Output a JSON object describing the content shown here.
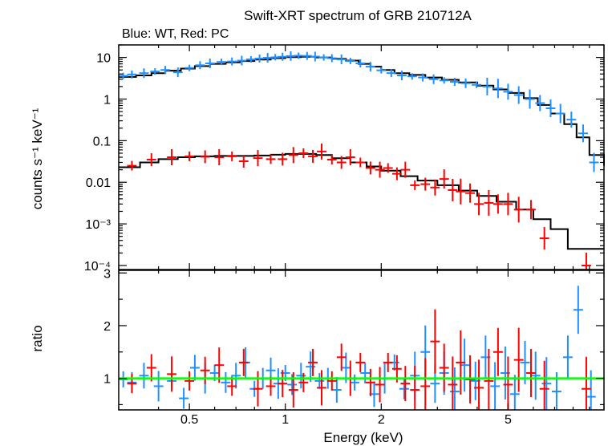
{
  "title": "Swift-XRT spectrum of GRB 210712A",
  "subtitle": "Blue: WT, Red: PC",
  "colors": {
    "wt": "#1e90ff",
    "pc": "#ff0000",
    "model": "#000000",
    "unity": "#00ff00",
    "frame": "#000000"
  },
  "chart_data": [
    {
      "type": "scatter",
      "panel": "spectrum",
      "title": "Swift-XRT spectrum of GRB 210712A",
      "xlabel": "Energy (keV)",
      "ylabel": "counts s⁻¹ keV⁻¹",
      "xscale": "log",
      "yscale": "log",
      "xlim": [
        0.3,
        10
      ],
      "ylim": [
        8e-05,
        20
      ],
      "xticks": [
        0.5,
        1,
        2,
        5
      ],
      "yticks": [
        "10",
        "1",
        "0.1",
        "0.01",
        "10⁻³",
        "10⁻⁴"
      ],
      "ytick_values": [
        10,
        1,
        0.1,
        0.01,
        0.001,
        0.0001
      ],
      "series": [
        {
          "name": "WT",
          "color": "#1e90ff",
          "points": [
            [
              0.31,
              3.6
            ],
            [
              0.33,
              3.9
            ],
            [
              0.36,
              4.2
            ],
            [
              0.39,
              4.6
            ],
            [
              0.42,
              5.0
            ],
            [
              0.46,
              4.4
            ],
            [
              0.5,
              5.6
            ],
            [
              0.54,
              6.5
            ],
            [
              0.58,
              7.2
            ],
            [
              0.63,
              7.8
            ],
            [
              0.68,
              8.0
            ],
            [
              0.73,
              8.4
            ],
            [
              0.78,
              9.0
            ],
            [
              0.83,
              9.4
            ],
            [
              0.88,
              9.8
            ],
            [
              0.93,
              10.1
            ],
            [
              0.98,
              10.4
            ],
            [
              1.04,
              10.8
            ],
            [
              1.1,
              11.0
            ],
            [
              1.17,
              10.9
            ],
            [
              1.24,
              10.5
            ],
            [
              1.32,
              10.0
            ],
            [
              1.4,
              9.6
            ],
            [
              1.5,
              9.0
            ],
            [
              1.6,
              8.2
            ],
            [
              1.72,
              7.2
            ],
            [
              1.85,
              6.0
            ],
            [
              2.0,
              4.9
            ],
            [
              2.15,
              4.2
            ],
            [
              2.32,
              3.7
            ],
            [
              2.5,
              3.5
            ],
            [
              2.7,
              3.3
            ],
            [
              2.92,
              3.0
            ],
            [
              3.15,
              2.8
            ],
            [
              3.4,
              2.6
            ],
            [
              3.68,
              2.4
            ],
            [
              3.98,
              2.2
            ],
            [
              4.3,
              2.0
            ],
            [
              4.65,
              1.8
            ],
            [
              5.0,
              1.5
            ],
            [
              5.4,
              1.25
            ],
            [
              5.85,
              1.0
            ],
            [
              6.3,
              0.8
            ],
            [
              6.8,
              0.6
            ],
            [
              7.3,
              0.45
            ],
            [
              7.9,
              0.32
            ],
            [
              8.6,
              0.15
            ],
            [
              9.3,
              0.03
            ]
          ]
        },
        {
          "name": "PC",
          "color": "#ff0000",
          "points": [
            [
              0.33,
              0.025
            ],
            [
              0.38,
              0.035
            ],
            [
              0.44,
              0.04
            ],
            [
              0.5,
              0.042
            ],
            [
              0.56,
              0.041
            ],
            [
              0.62,
              0.04
            ],
            [
              0.68,
              0.042
            ],
            [
              0.74,
              0.032
            ],
            [
              0.82,
              0.038
            ],
            [
              0.9,
              0.036
            ],
            [
              0.98,
              0.036
            ],
            [
              1.06,
              0.045
            ],
            [
              1.14,
              0.05
            ],
            [
              1.22,
              0.042
            ],
            [
              1.3,
              0.055
            ],
            [
              1.4,
              0.035
            ],
            [
              1.5,
              0.03
            ],
            [
              1.6,
              0.04
            ],
            [
              1.72,
              0.03
            ],
            [
              1.85,
              0.022
            ],
            [
              1.98,
              0.02
            ],
            [
              2.1,
              0.022
            ],
            [
              2.24,
              0.016
            ],
            [
              2.38,
              0.02
            ],
            [
              2.55,
              0.0085
            ],
            [
              2.75,
              0.009
            ],
            [
              2.95,
              0.0075
            ],
            [
              3.15,
              0.012
            ],
            [
              3.35,
              0.0065
            ],
            [
              3.55,
              0.006
            ],
            [
              3.8,
              0.0055
            ],
            [
              4.05,
              0.003
            ],
            [
              4.35,
              0.0032
            ],
            [
              4.65,
              0.003
            ],
            [
              5.0,
              0.003
            ],
            [
              5.4,
              0.0022
            ],
            [
              5.9,
              0.0022
            ],
            [
              6.5,
              0.00045
            ],
            [
              8.8,
              0.0001
            ]
          ]
        }
      ],
      "model": {
        "color": "#000000",
        "wt": [
          [
            0.3,
            3.4
          ],
          [
            0.34,
            3.7
          ],
          [
            0.38,
            4.2
          ],
          [
            0.42,
            4.8
          ],
          [
            0.47,
            5.4
          ],
          [
            0.52,
            6.2
          ],
          [
            0.58,
            7.0
          ],
          [
            0.65,
            7.6
          ],
          [
            0.72,
            8.2
          ],
          [
            0.8,
            8.9
          ],
          [
            0.9,
            9.6
          ],
          [
            1.0,
            10.2
          ],
          [
            1.12,
            10.4
          ],
          [
            1.25,
            10.0
          ],
          [
            1.4,
            9.3
          ],
          [
            1.55,
            8.4
          ],
          [
            1.7,
            7.0
          ],
          [
            1.85,
            6.0
          ],
          [
            2.0,
            5.0
          ],
          [
            2.2,
            4.2
          ],
          [
            2.45,
            3.8
          ],
          [
            2.75,
            3.3
          ],
          [
            3.1,
            2.9
          ],
          [
            3.5,
            2.5
          ],
          [
            4.0,
            2.1
          ],
          [
            4.5,
            1.7
          ],
          [
            5.0,
            1.4
          ],
          [
            5.6,
            1.05
          ],
          [
            6.2,
            0.72
          ],
          [
            6.8,
            0.45
          ],
          [
            7.5,
            0.25
          ],
          [
            8.2,
            0.12
          ],
          [
            9.0,
            0.045
          ],
          [
            10.0,
            0.025
          ]
        ],
        "pc": [
          [
            0.3,
            0.023
          ],
          [
            0.35,
            0.03
          ],
          [
            0.4,
            0.036
          ],
          [
            0.46,
            0.04
          ],
          [
            0.52,
            0.042
          ],
          [
            0.6,
            0.043
          ],
          [
            0.7,
            0.043
          ],
          [
            0.8,
            0.044
          ],
          [
            0.9,
            0.046
          ],
          [
            1.0,
            0.048
          ],
          [
            1.1,
            0.048
          ],
          [
            1.25,
            0.045
          ],
          [
            1.4,
            0.038
          ],
          [
            1.6,
            0.03
          ],
          [
            1.8,
            0.024
          ],
          [
            2.0,
            0.019
          ],
          [
            2.3,
            0.014
          ],
          [
            2.6,
            0.011
          ],
          [
            3.0,
            0.0085
          ],
          [
            3.5,
            0.0063
          ],
          [
            4.0,
            0.0047
          ],
          [
            4.6,
            0.0034
          ],
          [
            5.3,
            0.0022
          ],
          [
            6.0,
            0.0013
          ],
          [
            6.8,
            0.00075
          ],
          [
            7.7,
            0.00025
          ],
          [
            10.0,
            0.00025
          ]
        ]
      }
    },
    {
      "type": "scatter",
      "panel": "ratio",
      "xlabel": "Energy (keV)",
      "ylabel": "ratio",
      "xscale": "log",
      "xlim": [
        0.3,
        10
      ],
      "ylim": [
        0.4,
        3.05
      ],
      "yticks": [
        1,
        2,
        3
      ],
      "reference_line": 1,
      "series": [
        {
          "name": "WT",
          "color": "#1e90ff",
          "points": [
            [
              0.31,
              0.98
            ],
            [
              0.33,
              0.92
            ],
            [
              0.36,
              1.05
            ],
            [
              0.4,
              0.85
            ],
            [
              0.44,
              0.95
            ],
            [
              0.48,
              0.62
            ],
            [
              0.52,
              1.2
            ],
            [
              0.56,
              1.0
            ],
            [
              0.6,
              1.1
            ],
            [
              0.65,
              0.92
            ],
            [
              0.7,
              1.05
            ],
            [
              0.75,
              1.3
            ],
            [
              0.8,
              0.8
            ],
            [
              0.85,
              1.0
            ],
            [
              0.9,
              1.15
            ],
            [
              0.95,
              0.9
            ],
            [
              1.0,
              1.1
            ],
            [
              1.05,
              0.88
            ],
            [
              1.12,
              1.05
            ],
            [
              1.2,
              1.22
            ],
            [
              1.28,
              0.95
            ],
            [
              1.36,
              1.0
            ],
            [
              1.45,
              0.78
            ],
            [
              1.55,
              1.2
            ],
            [
              1.65,
              0.92
            ],
            [
              1.78,
              1.1
            ],
            [
              1.9,
              0.7
            ],
            [
              2.05,
              1.0
            ],
            [
              2.2,
              1.3
            ],
            [
              2.36,
              0.8
            ],
            [
              2.55,
              1.05
            ],
            [
              2.75,
              1.5
            ],
            [
              2.95,
              0.9
            ],
            [
              3.15,
              1.1
            ],
            [
              3.4,
              0.75
            ],
            [
              3.65,
              1.25
            ],
            [
              3.95,
              0.95
            ],
            [
              4.25,
              1.4
            ],
            [
              4.55,
              0.85
            ],
            [
              4.9,
              1.1
            ],
            [
              5.25,
              0.7
            ],
            [
              5.65,
              1.3
            ],
            [
              6.1,
              1.05
            ],
            [
              6.6,
              0.9
            ],
            [
              7.1,
              0.75
            ],
            [
              7.7,
              1.4
            ],
            [
              8.3,
              2.3
            ],
            [
              9.1,
              0.65
            ]
          ]
        },
        {
          "name": "PC",
          "color": "#ff0000",
          "points": [
            [
              0.33,
              0.9
            ],
            [
              0.38,
              1.2
            ],
            [
              0.44,
              1.08
            ],
            [
              0.5,
              0.95
            ],
            [
              0.56,
              1.15
            ],
            [
              0.62,
              1.25
            ],
            [
              0.68,
              0.85
            ],
            [
              0.74,
              1.3
            ],
            [
              0.82,
              0.8
            ],
            [
              0.9,
              0.85
            ],
            [
              0.98,
              0.9
            ],
            [
              1.06,
              0.78
            ],
            [
              1.14,
              0.92
            ],
            [
              1.22,
              1.3
            ],
            [
              1.3,
              0.82
            ],
            [
              1.4,
              0.95
            ],
            [
              1.5,
              1.4
            ],
            [
              1.6,
              1.0
            ],
            [
              1.72,
              1.3
            ],
            [
              1.85,
              0.92
            ],
            [
              1.98,
              0.88
            ],
            [
              2.1,
              1.3
            ],
            [
              2.24,
              1.18
            ],
            [
              2.38,
              0.9
            ],
            [
              2.55,
              0.78
            ],
            [
              2.75,
              0.85
            ],
            [
              2.95,
              1.7
            ],
            [
              3.15,
              1.2
            ],
            [
              3.35,
              0.88
            ],
            [
              3.55,
              1.3
            ],
            [
              3.8,
              0.98
            ],
            [
              4.05,
              0.82
            ],
            [
              4.35,
              0.95
            ],
            [
              4.65,
              1.5
            ],
            [
              5.0,
              0.88
            ],
            [
              5.4,
              1.35
            ],
            [
              5.9,
              1.1
            ],
            [
              6.5,
              0.8
            ],
            [
              8.8,
              0.8
            ]
          ]
        }
      ]
    }
  ]
}
